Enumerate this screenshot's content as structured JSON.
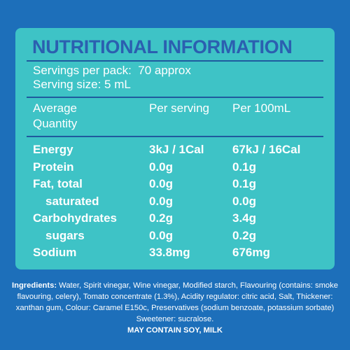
{
  "header": {
    "title": "NUTRITIONAL INFORMATION"
  },
  "servings": {
    "per_pack_label": "Servings per pack:",
    "per_pack_value": "70 approx",
    "size": "Serving size: 5 mL"
  },
  "table": {
    "columns": [
      "Average Quantity",
      "Per serving",
      "Per 100mL"
    ],
    "rows": [
      [
        "Energy",
        "3kJ / 1Cal",
        "67kJ / 16Cal"
      ],
      [
        "Protein",
        "0.0g",
        "0.1g"
      ],
      [
        "Fat, total",
        "0.0g",
        "0.1g"
      ],
      [
        "saturated",
        "0.0g",
        "0.0g"
      ],
      [
        "Carbohydrates",
        "0.2g",
        "3.4g"
      ],
      [
        "sugars",
        "0.0g",
        "0.2g"
      ],
      [
        "Sodium",
        "33.8mg",
        "676mg"
      ]
    ]
  },
  "ingredients": {
    "label": "Ingredients:",
    "text": "Water, Spirit vinegar, Wine vinegar, Modified starch, Flavouring (contains: smoke flavouring, celery), Tomato concentrate (1.3%), Acidity regulator: citric acid, Salt, Thickener: xanthan gum, Colour: Caramel E150c, Preservatives (sodium benzoate, potassium sorbate) Sweetener: sucralose.",
    "allergens": "MAY CONTAIN SOY, MILK"
  }
}
